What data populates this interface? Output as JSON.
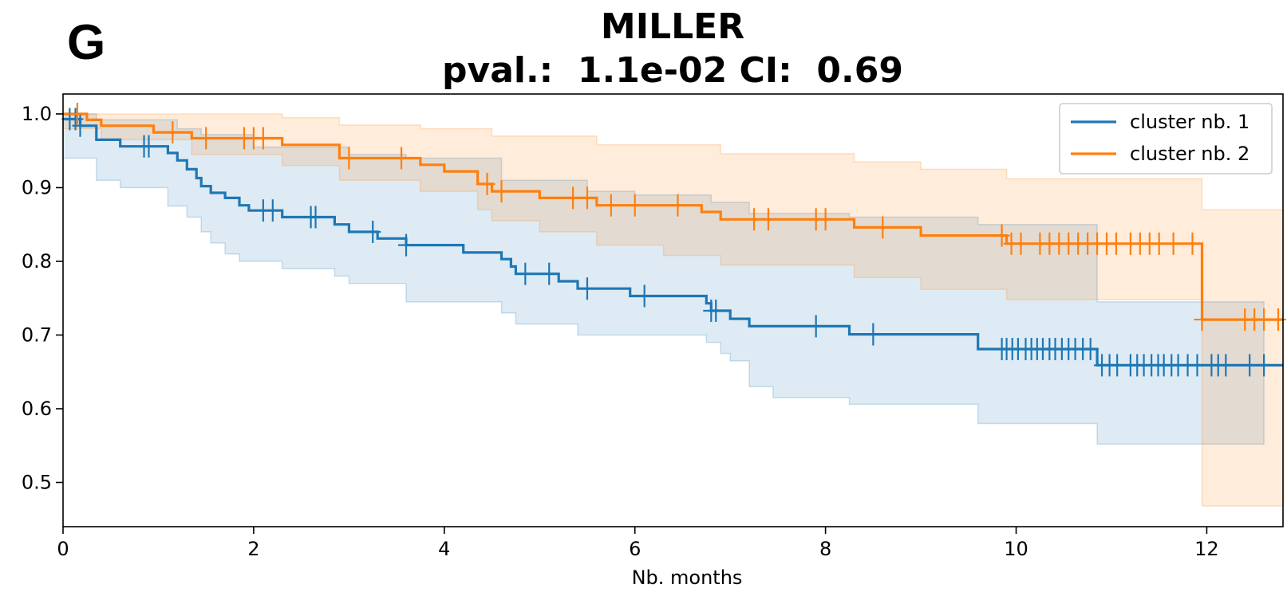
{
  "panel_letter": "G",
  "chart_data": {
    "type": "line",
    "title": "MILLER",
    "subtitle": "pval.:  1.1e-02 CI:  0.69",
    "xlabel": "Nb. months",
    "ylabel": "",
    "xlim": [
      0,
      12.8
    ],
    "ylim": [
      0.44,
      1.027
    ],
    "xticks": [
      "0",
      "2",
      "4",
      "6",
      "8",
      "10",
      "12"
    ],
    "yticks": [
      "0.5",
      "0.6",
      "0.7",
      "0.8",
      "0.9",
      "1.0"
    ],
    "grid": false,
    "legend_position": "top-right",
    "legend": [
      "cluster nb. 1",
      "cluster nb. 2"
    ],
    "series": [
      {
        "name": "cluster nb. 1",
        "color": "#1f77b4",
        "steps": [
          [
            0,
            0.993
          ],
          [
            0.18,
            0.984
          ],
          [
            0.35,
            0.965
          ],
          [
            0.6,
            0.956
          ],
          [
            1.1,
            0.947
          ],
          [
            1.2,
            0.937
          ],
          [
            1.3,
            0.925
          ],
          [
            1.4,
            0.913
          ],
          [
            1.45,
            0.902
          ],
          [
            1.55,
            0.893
          ],
          [
            1.7,
            0.886
          ],
          [
            1.85,
            0.876
          ],
          [
            1.95,
            0.869
          ],
          [
            2.3,
            0.86
          ],
          [
            2.85,
            0.85
          ],
          [
            3.0,
            0.84
          ],
          [
            3.3,
            0.831
          ],
          [
            3.6,
            0.822
          ],
          [
            4.2,
            0.812
          ],
          [
            4.6,
            0.803
          ],
          [
            4.7,
            0.793
          ],
          [
            4.75,
            0.783
          ],
          [
            5.2,
            0.773
          ],
          [
            5.4,
            0.763
          ],
          [
            5.95,
            0.753
          ],
          [
            6.75,
            0.743
          ],
          [
            6.8,
            0.733
          ],
          [
            7.0,
            0.722
          ],
          [
            7.2,
            0.712
          ],
          [
            8.25,
            0.701
          ],
          [
            9.6,
            0.681
          ],
          [
            10.85,
            0.659
          ]
        ],
        "end_x": 12.8,
        "censor_x": [
          0.07,
          0.13,
          0.18,
          0.85,
          0.9,
          2.1,
          2.2,
          2.6,
          2.65,
          3.25,
          3.6,
          4.85,
          5.1,
          5.5,
          6.1,
          6.8,
          6.85,
          7.9,
          8.5,
          9.85,
          9.9,
          9.96,
          10.02,
          10.1,
          10.16,
          10.22,
          10.28,
          10.35,
          10.41,
          10.48,
          10.55,
          10.62,
          10.7,
          10.78,
          10.9,
          10.98,
          11.06,
          11.2,
          11.27,
          11.34,
          11.42,
          11.49,
          11.55,
          11.63,
          11.7,
          11.8,
          11.9,
          12.05,
          12.12,
          12.2,
          12.45,
          12.6
        ],
        "ci_upper": [
          [
            0,
            1.0
          ],
          [
            0.35,
            0.992
          ],
          [
            1.2,
            0.98
          ],
          [
            1.45,
            0.972
          ],
          [
            2.0,
            0.955
          ],
          [
            3.0,
            0.945
          ],
          [
            3.6,
            0.94
          ],
          [
            4.6,
            0.91
          ],
          [
            5.5,
            0.895
          ],
          [
            6.0,
            0.89
          ],
          [
            6.8,
            0.88
          ],
          [
            7.2,
            0.865
          ],
          [
            8.25,
            0.86
          ],
          [
            9.6,
            0.85
          ],
          [
            10.85,
            0.745
          ]
        ],
        "ci_lower": [
          [
            0,
            0.94
          ],
          [
            0.35,
            0.91
          ],
          [
            0.6,
            0.9
          ],
          [
            1.1,
            0.875
          ],
          [
            1.3,
            0.86
          ],
          [
            1.45,
            0.84
          ],
          [
            1.55,
            0.825
          ],
          [
            1.7,
            0.81
          ],
          [
            1.85,
            0.8
          ],
          [
            2.3,
            0.79
          ],
          [
            2.85,
            0.78
          ],
          [
            3.0,
            0.77
          ],
          [
            3.6,
            0.745
          ],
          [
            4.6,
            0.73
          ],
          [
            4.75,
            0.715
          ],
          [
            5.4,
            0.7
          ],
          [
            6.75,
            0.69
          ],
          [
            6.9,
            0.675
          ],
          [
            7.0,
            0.665
          ],
          [
            7.2,
            0.63
          ],
          [
            7.45,
            0.615
          ],
          [
            8.25,
            0.606
          ],
          [
            9.6,
            0.58
          ],
          [
            10.85,
            0.552
          ]
        ],
        "ci_end_x": 12.6
      },
      {
        "name": "cluster nb. 2",
        "color": "#ff7f0e",
        "steps": [
          [
            0,
            1.0
          ],
          [
            0.25,
            0.992
          ],
          [
            0.4,
            0.984
          ],
          [
            0.95,
            0.975
          ],
          [
            1.35,
            0.967
          ],
          [
            2.3,
            0.958
          ],
          [
            2.9,
            0.94
          ],
          [
            3.75,
            0.931
          ],
          [
            4.0,
            0.922
          ],
          [
            4.35,
            0.905
          ],
          [
            4.5,
            0.895
          ],
          [
            5.0,
            0.886
          ],
          [
            5.6,
            0.876
          ],
          [
            6.7,
            0.867
          ],
          [
            6.9,
            0.857
          ],
          [
            8.3,
            0.846
          ],
          [
            9.0,
            0.835
          ],
          [
            9.9,
            0.824
          ],
          [
            11.95,
            0.721
          ]
        ],
        "end_x": 12.8,
        "censor_x": [
          0.15,
          1.15,
          1.5,
          1.9,
          2.0,
          2.1,
          3.0,
          3.55,
          4.45,
          4.6,
          5.35,
          5.5,
          5.75,
          6.0,
          6.45,
          7.25,
          7.4,
          7.9,
          8.0,
          8.6,
          9.85,
          9.95,
          10.05,
          10.25,
          10.35,
          10.45,
          10.55,
          10.65,
          10.75,
          10.85,
          10.95,
          11.05,
          11.2,
          11.3,
          11.4,
          11.5,
          11.65,
          11.85,
          11.95,
          12.4,
          12.5,
          12.6,
          12.75
        ],
        "ci_upper": [
          [
            0,
            1.0
          ],
          [
            2.3,
            0.995
          ],
          [
            2.9,
            0.985
          ],
          [
            3.75,
            0.98
          ],
          [
            4.5,
            0.97
          ],
          [
            5.6,
            0.958
          ],
          [
            6.9,
            0.946
          ],
          [
            8.3,
            0.935
          ],
          [
            9.0,
            0.925
          ],
          [
            9.9,
            0.912
          ],
          [
            11.95,
            0.87
          ]
        ],
        "ci_lower": [
          [
            0,
            0.98
          ],
          [
            0.4,
            0.965
          ],
          [
            1.35,
            0.945
          ],
          [
            2.3,
            0.93
          ],
          [
            2.9,
            0.91
          ],
          [
            3.75,
            0.895
          ],
          [
            4.35,
            0.87
          ],
          [
            4.5,
            0.855
          ],
          [
            5.0,
            0.84
          ],
          [
            5.6,
            0.822
          ],
          [
            6.3,
            0.808
          ],
          [
            6.9,
            0.795
          ],
          [
            8.3,
            0.778
          ],
          [
            9.0,
            0.762
          ],
          [
            9.9,
            0.748
          ],
          [
            11.95,
            0.468
          ]
        ],
        "ci_end_x": 12.8
      }
    ]
  }
}
